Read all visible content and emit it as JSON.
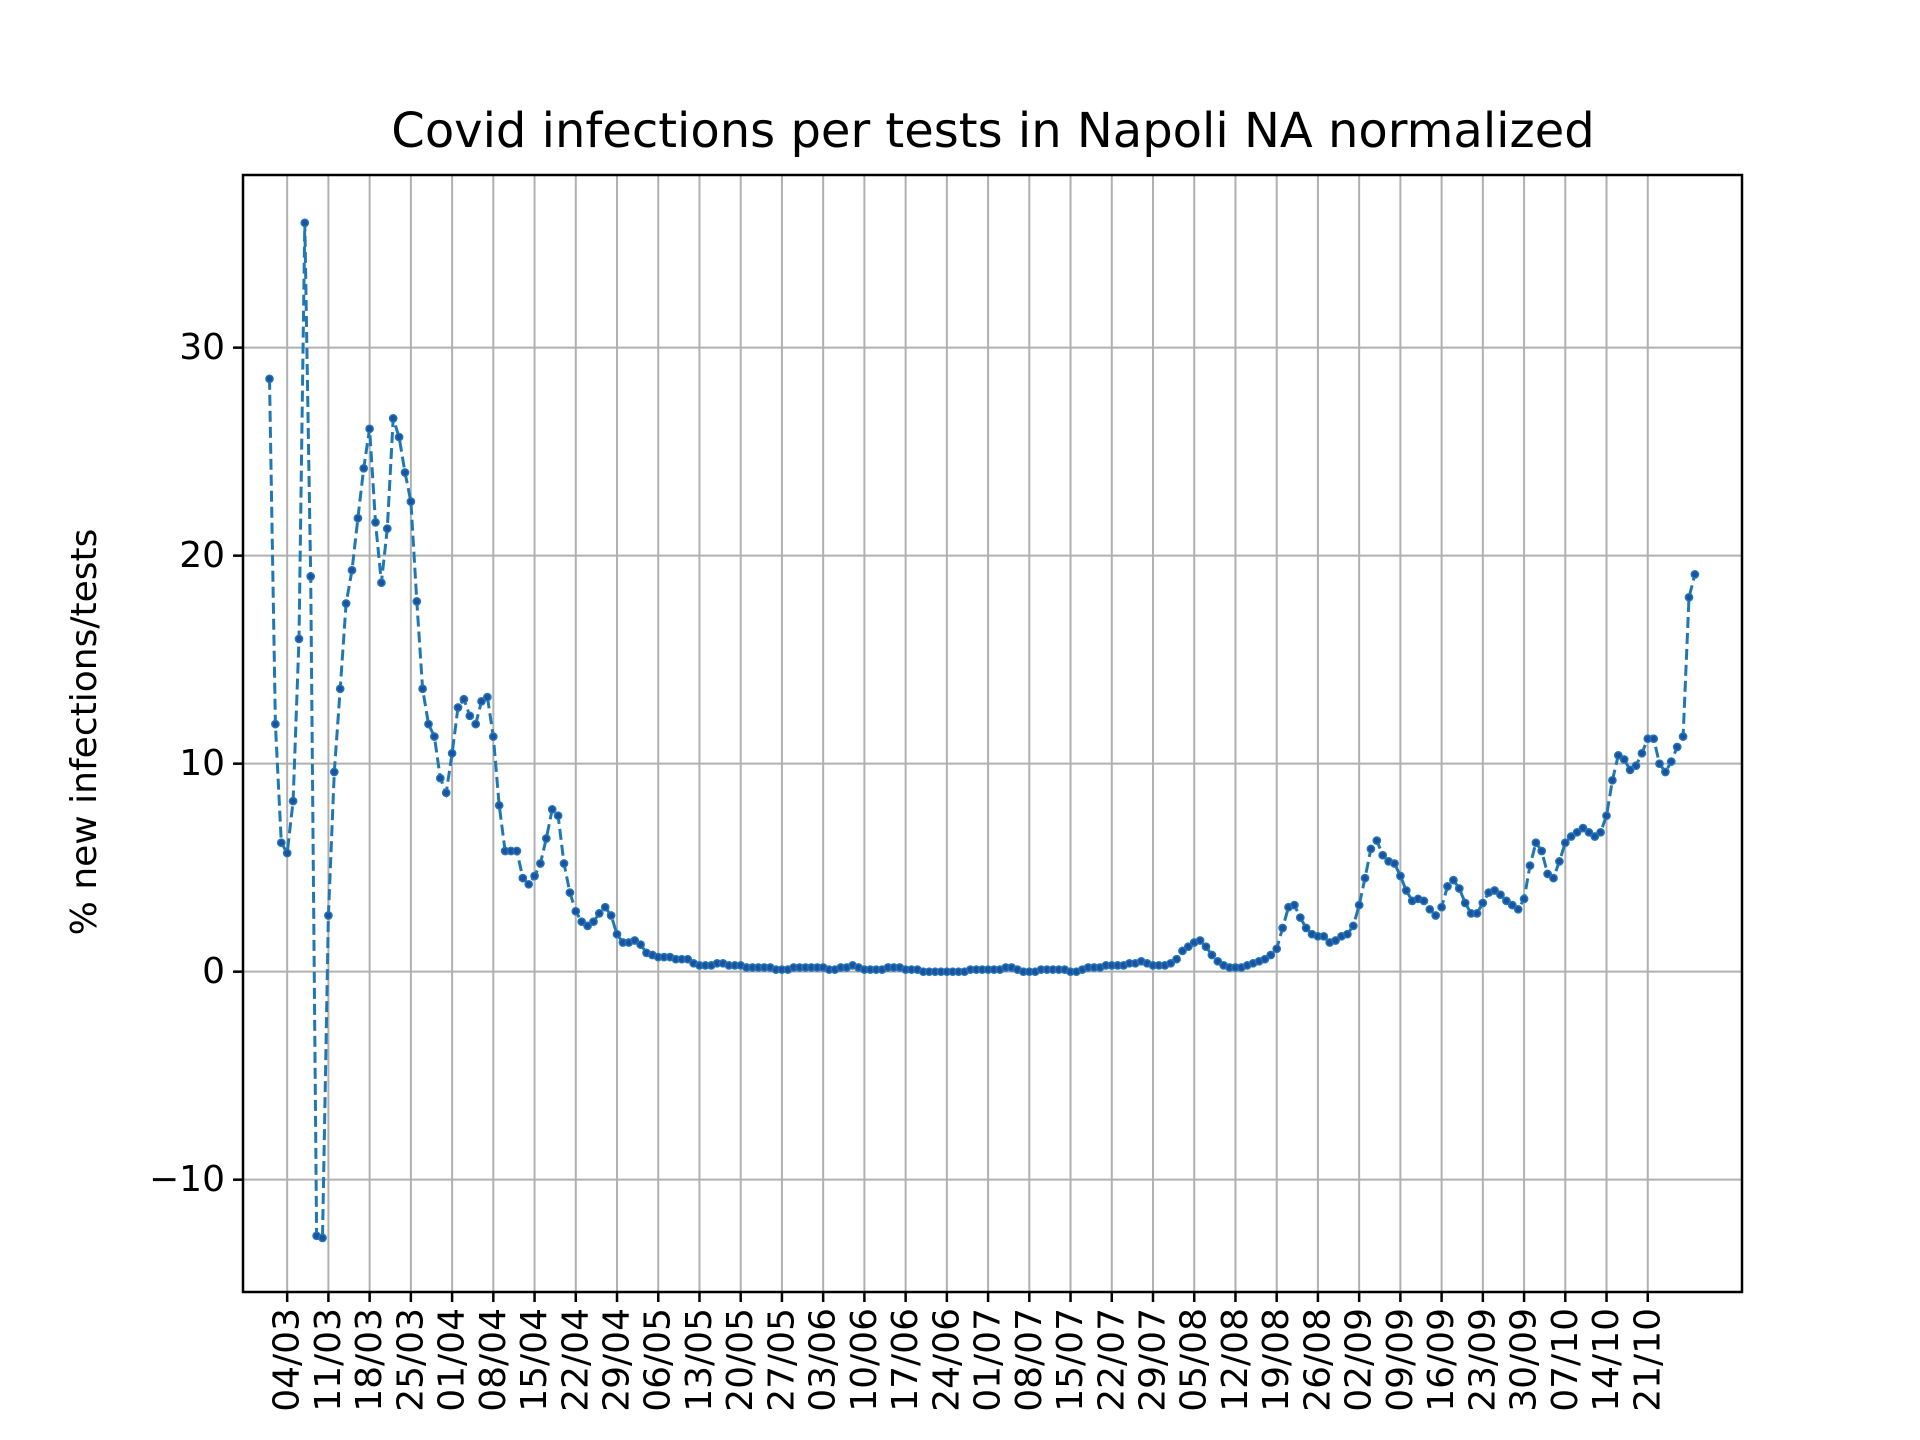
{
  "chart_data": {
    "type": "line",
    "title": "Covid infections per tests in Napoli NA normalized",
    "xlabel": "",
    "ylabel": "% new infections/tests",
    "x_start": "01/03",
    "x_tick_labels": [
      "04/03",
      "11/03",
      "18/03",
      "25/03",
      "01/04",
      "08/04",
      "15/04",
      "22/04",
      "29/04",
      "06/05",
      "13/05",
      "20/05",
      "27/05",
      "03/06",
      "10/06",
      "17/06",
      "24/06",
      "01/07",
      "08/07",
      "15/07",
      "22/07",
      "29/07",
      "05/08",
      "12/08",
      "19/08",
      "26/08",
      "02/09",
      "09/09",
      "16/09",
      "23/09",
      "30/09",
      "07/10",
      "14/10",
      "21/10"
    ],
    "y_ticks": [
      -10,
      0,
      10,
      20,
      30
    ],
    "y_tick_labels": [
      "−10",
      "0",
      "10",
      "20",
      "30"
    ],
    "xlim": [
      -4.5,
      250
    ],
    "ylim": [
      -15.4,
      38.3
    ],
    "grid": true,
    "series": [
      {
        "line_style": "dashed",
        "marker": "dot",
        "color": "#1f77b4",
        "values": [
          28.5,
          11.9,
          6.2,
          5.7,
          8.2,
          16.0,
          36.0,
          19.0,
          -12.7,
          -12.8,
          2.7,
          9.6,
          13.6,
          17.7,
          19.3,
          21.8,
          24.2,
          26.1,
          21.6,
          18.7,
          21.3,
          26.6,
          25.7,
          24.0,
          22.6,
          17.8,
          13.6,
          11.9,
          11.3,
          9.3,
          8.6,
          10.5,
          12.7,
          13.1,
          12.3,
          11.9,
          13.0,
          13.2,
          11.3,
          8.0,
          5.8,
          5.8,
          5.8,
          4.5,
          4.2,
          4.6,
          5.2,
          6.4,
          7.8,
          7.5,
          5.2,
          3.8,
          2.9,
          2.4,
          2.2,
          2.4,
          2.8,
          3.1,
          2.7,
          1.8,
          1.4,
          1.4,
          1.5,
          1.3,
          0.9,
          0.8,
          0.7,
          0.7,
          0.7,
          0.6,
          0.6,
          0.6,
          0.4,
          0.3,
          0.3,
          0.3,
          0.4,
          0.4,
          0.3,
          0.3,
          0.3,
          0.2,
          0.2,
          0.2,
          0.2,
          0.2,
          0.1,
          0.1,
          0.1,
          0.2,
          0.2,
          0.2,
          0.2,
          0.2,
          0.2,
          0.1,
          0.1,
          0.2,
          0.2,
          0.3,
          0.2,
          0.1,
          0.1,
          0.1,
          0.1,
          0.2,
          0.2,
          0.2,
          0.1,
          0.1,
          0.1,
          0.0,
          0.0,
          0.0,
          0.0,
          0.0,
          0.0,
          0.0,
          0.0,
          0.1,
          0.1,
          0.1,
          0.1,
          0.1,
          0.1,
          0.2,
          0.2,
          0.1,
          0.0,
          0.0,
          0.0,
          0.1,
          0.1,
          0.1,
          0.1,
          0.1,
          0.0,
          0.0,
          0.1,
          0.2,
          0.2,
          0.2,
          0.3,
          0.3,
          0.3,
          0.3,
          0.4,
          0.4,
          0.5,
          0.4,
          0.3,
          0.3,
          0.3,
          0.4,
          0.6,
          1.0,
          1.2,
          1.4,
          1.5,
          1.2,
          0.8,
          0.5,
          0.3,
          0.2,
          0.2,
          0.2,
          0.3,
          0.4,
          0.5,
          0.6,
          0.8,
          1.1,
          2.1,
          3.1,
          3.2,
          2.6,
          2.1,
          1.8,
          1.7,
          1.7,
          1.4,
          1.5,
          1.7,
          1.8,
          2.2,
          3.2,
          4.5,
          5.9,
          6.3,
          5.6,
          5.3,
          5.2,
          4.6,
          3.9,
          3.4,
          3.5,
          3.4,
          3.0,
          2.7,
          3.1,
          4.1,
          4.4,
          4.0,
          3.3,
          2.8,
          2.8,
          3.3,
          3.8,
          3.9,
          3.7,
          3.4,
          3.2,
          3.0,
          3.5,
          5.1,
          6.2,
          5.8,
          4.7,
          4.5,
          5.3,
          6.2,
          6.5,
          6.7,
          6.9,
          6.7,
          6.5,
          6.7,
          7.5,
          9.2,
          10.4,
          10.2,
          9.7,
          9.9,
          10.5,
          11.2,
          11.2,
          10.0,
          9.6,
          10.1,
          10.8,
          11.3,
          18.0,
          19.1
        ]
      }
    ]
  }
}
